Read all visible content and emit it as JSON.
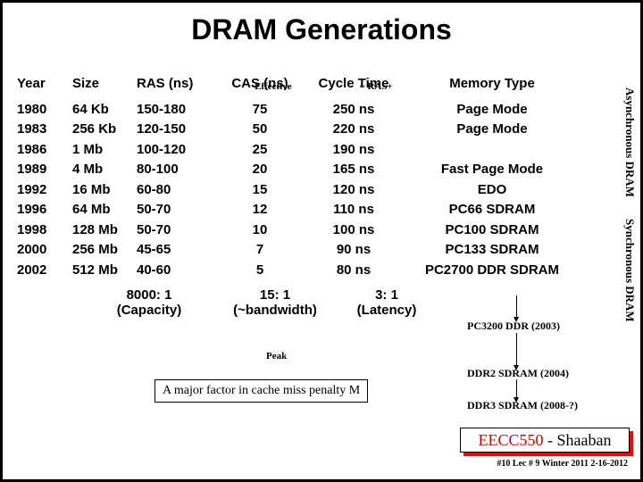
{
  "title": "DRAM Generations",
  "labels": {
    "effective": "Effective",
    "rasplus": "~ RAS+",
    "peak": "Peak"
  },
  "headers": {
    "year": "Year",
    "size": "Size",
    "ras": "RAS (ns)",
    "cas": "CAS (ns)",
    "cycle": "Cycle Time",
    "mem": "Memory Type"
  },
  "rows": [
    {
      "year": "1980",
      "size": "64 Kb",
      "ras": "150-180",
      "cas": "75",
      "cycle": "250 ns",
      "mem": "Page Mode"
    },
    {
      "year": "1983",
      "size": "256 Kb",
      "ras": "120-150",
      "cas": "50",
      "cycle": "220 ns",
      "mem": "Page Mode"
    },
    {
      "year": "1986",
      "size": "1 Mb",
      "ras": "100-120",
      "cas": "25",
      "cycle": "190 ns",
      "mem": ""
    },
    {
      "year": "1989",
      "size": "4 Mb",
      "ras": "80-100",
      "cas": "20",
      "cycle": "165 ns",
      "mem": "Fast Page Mode"
    },
    {
      "year": "1992",
      "size": "16 Mb",
      "ras": "60-80",
      "cas": "15",
      "cycle": "120 ns",
      "mem": "EDO"
    },
    {
      "year": "1996",
      "size": "64 Mb",
      "ras": "50-70",
      "cas": "12",
      "cycle": "110 ns",
      "mem": "PC66 SDRAM"
    },
    {
      "year": "1998",
      "size": "128 Mb",
      "ras": "50-70",
      "cas": "10",
      "cycle": "100 ns",
      "mem": "PC100 SDRAM"
    },
    {
      "year": "2000",
      "size": "256 Mb",
      "ras": "45-65",
      "cas": "7",
      "cycle": "90 ns",
      "mem": "PC133 SDRAM"
    },
    {
      "year": "2002",
      "size": "512 Mb",
      "ras": "40-60",
      "cas": "5",
      "cycle": "80 ns",
      "mem": "PC2700 DDR SDRAM"
    }
  ],
  "ratios": {
    "cap1": "8000: 1",
    "cap2": "(Capacity)",
    "bw1": "15: 1",
    "bw2": "(~bandwidth)",
    "lat1": "3: 1",
    "lat2": "(Latency)"
  },
  "annots": {
    "pc3200": "PC3200 DDR (2003)",
    "ddr2": "DDR2 SDRAM (2004)",
    "ddr3": "DDR3 SDRAM (2008-?)"
  },
  "side": {
    "async": "Asynchronous DRAM",
    "sync": "Synchronous DRAM"
  },
  "cache": "A major factor in cache miss penalty M",
  "badge": {
    "course": "EECC550",
    "sep": " - ",
    "author": "Shaaban"
  },
  "lec": "#10   Lec # 9  Winter 2011  2-16-2012"
}
